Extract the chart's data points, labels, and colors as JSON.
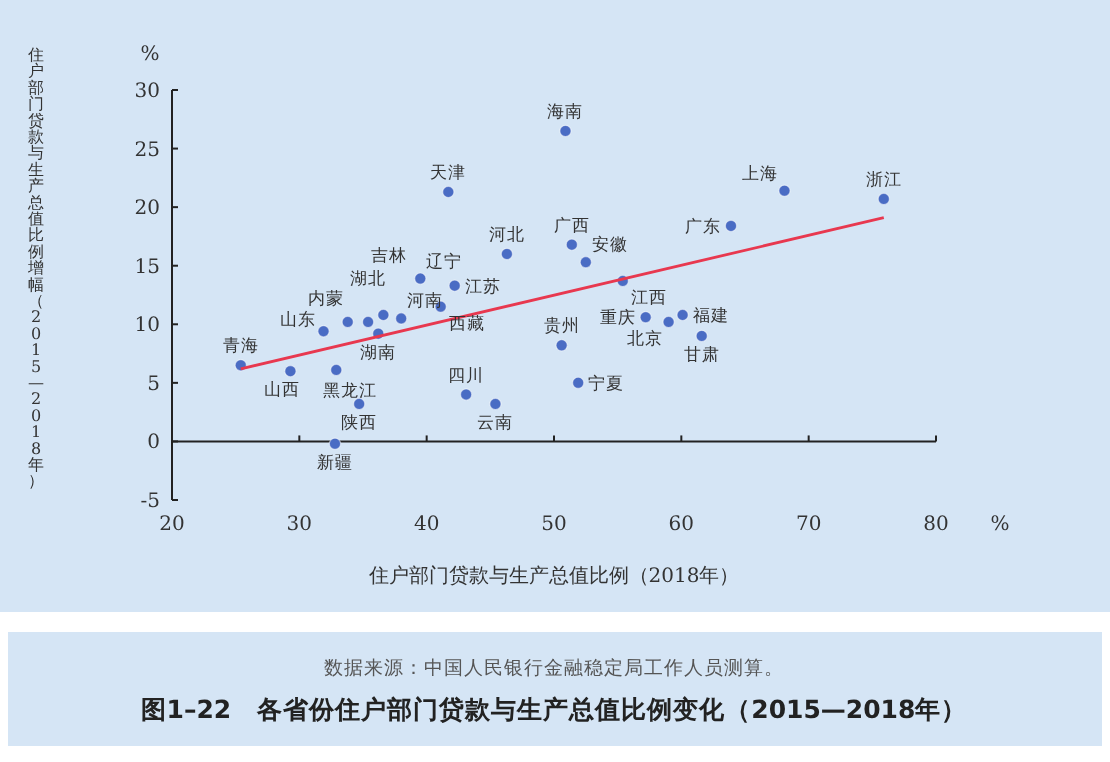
{
  "chart_data": {
    "type": "scatter",
    "title": "图1–22　各省份住户部门贷款与生产总值比例变化（2015—2018年）",
    "xlabel": "住户部门贷款与生产总值比例（2018年）",
    "ylabel": "住户部门贷款与生产总值比例增幅（2015—2018年）",
    "annotations": [
      "%",
      "%",
      "数据来源：中国人民银行金融稳定局工作人员测算。",
      {
        "text": "青海",
        "x": 25.4,
        "y": 6.5
      },
      {
        "text": "山西",
        "x": 29.3,
        "y": 6.0
      },
      {
        "text": "黑龙江",
        "x": 32.9,
        "y": 6.1
      },
      {
        "text": "陕西",
        "x": 34.7,
        "y": 3.2
      },
      {
        "text": "新疆",
        "x": 32.8,
        "y": -0.2
      },
      {
        "text": "山东",
        "x": 31.9,
        "y": 9.4
      },
      {
        "text": "内蒙",
        "x": 33.8,
        "y": 10.2
      },
      {
        "text": "湖北",
        "x": 35.4,
        "y": 10.2
      },
      {
        "text": "湖南",
        "x": 36.2,
        "y": 9.2
      },
      {
        "text": "吉林",
        "x": 36.6,
        "y": 10.8
      },
      {
        "text": "河南",
        "x": 38.0,
        "y": 10.5
      },
      {
        "text": "辽宁",
        "x": 39.5,
        "y": 13.9
      },
      {
        "text": "天津",
        "x": 41.7,
        "y": 21.3
      },
      {
        "text": "江苏",
        "x": 42.2,
        "y": 13.3
      },
      {
        "text": "西藏",
        "x": 41.1,
        "y": 11.5
      },
      {
        "text": "四川",
        "x": 43.1,
        "y": 4.0
      },
      {
        "text": "云南",
        "x": 45.4,
        "y": 3.2
      },
      {
        "text": "河北",
        "x": 46.3,
        "y": 16.0
      },
      {
        "text": "海南",
        "x": 50.9,
        "y": 26.5
      },
      {
        "text": "上海",
        "x": 68.1,
        "y": 21.4
      },
      {
        "text": "浙江",
        "x": 75.9,
        "y": 20.7
      },
      {
        "text": "广东",
        "x": 63.9,
        "y": 18.4
      },
      {
        "text": "广西",
        "x": 51.4,
        "y": 16.8
      },
      {
        "text": "安徽",
        "x": 52.5,
        "y": 15.3
      },
      {
        "text": "江西",
        "x": 55.4,
        "y": 13.7
      },
      {
        "text": "重庆",
        "x": 57.2,
        "y": 10.6
      },
      {
        "text": "北京",
        "x": 59.0,
        "y": 10.2
      },
      {
        "text": "福建",
        "x": 60.1,
        "y": 10.8
      },
      {
        "text": "甘肃",
        "x": 61.6,
        "y": 9.0
      },
      {
        "text": "贵州",
        "x": 50.6,
        "y": 8.2
      },
      {
        "text": "宁夏",
        "x": 51.9,
        "y": 5.0
      }
    ],
    "series": [
      {
        "color": "#4a6cc4",
        "x": [
          25.4,
          29.3,
          32.9,
          34.7,
          32.8,
          31.9,
          33.8,
          35.4,
          36.2,
          36.6,
          38.0,
          39.5,
          41.7,
          42.2,
          41.1,
          43.1,
          45.4,
          46.3,
          50.9,
          68.1,
          75.9,
          63.9,
          51.4,
          52.5,
          55.4,
          57.2,
          59.0,
          60.1,
          61.6,
          50.6,
          51.9
        ],
        "values": [
          6.5,
          6.0,
          6.1,
          3.2,
          -0.2,
          9.4,
          10.2,
          10.2,
          9.2,
          10.8,
          10.5,
          13.9,
          21.3,
          13.3,
          11.5,
          4.0,
          3.2,
          16.0,
          26.5,
          21.4,
          20.7,
          18.4,
          16.8,
          15.3,
          13.7,
          10.6,
          10.2,
          10.8,
          9.0,
          8.2,
          5.0
        ]
      },
      {
        "type": "line",
        "marker": "none",
        "color": "#e8384f",
        "x": [
          25.4,
          75.9
        ],
        "values": [
          6.2,
          19.1
        ]
      }
    ],
    "xlim": [
      20,
      80
    ],
    "ylim": [
      -5,
      30
    ],
    "xticks": [
      20,
      30,
      40,
      50,
      60,
      70,
      80
    ],
    "yticks": [
      -5,
      0,
      5,
      10,
      15,
      20,
      25,
      30
    ],
    "marker": "circle"
  }
}
